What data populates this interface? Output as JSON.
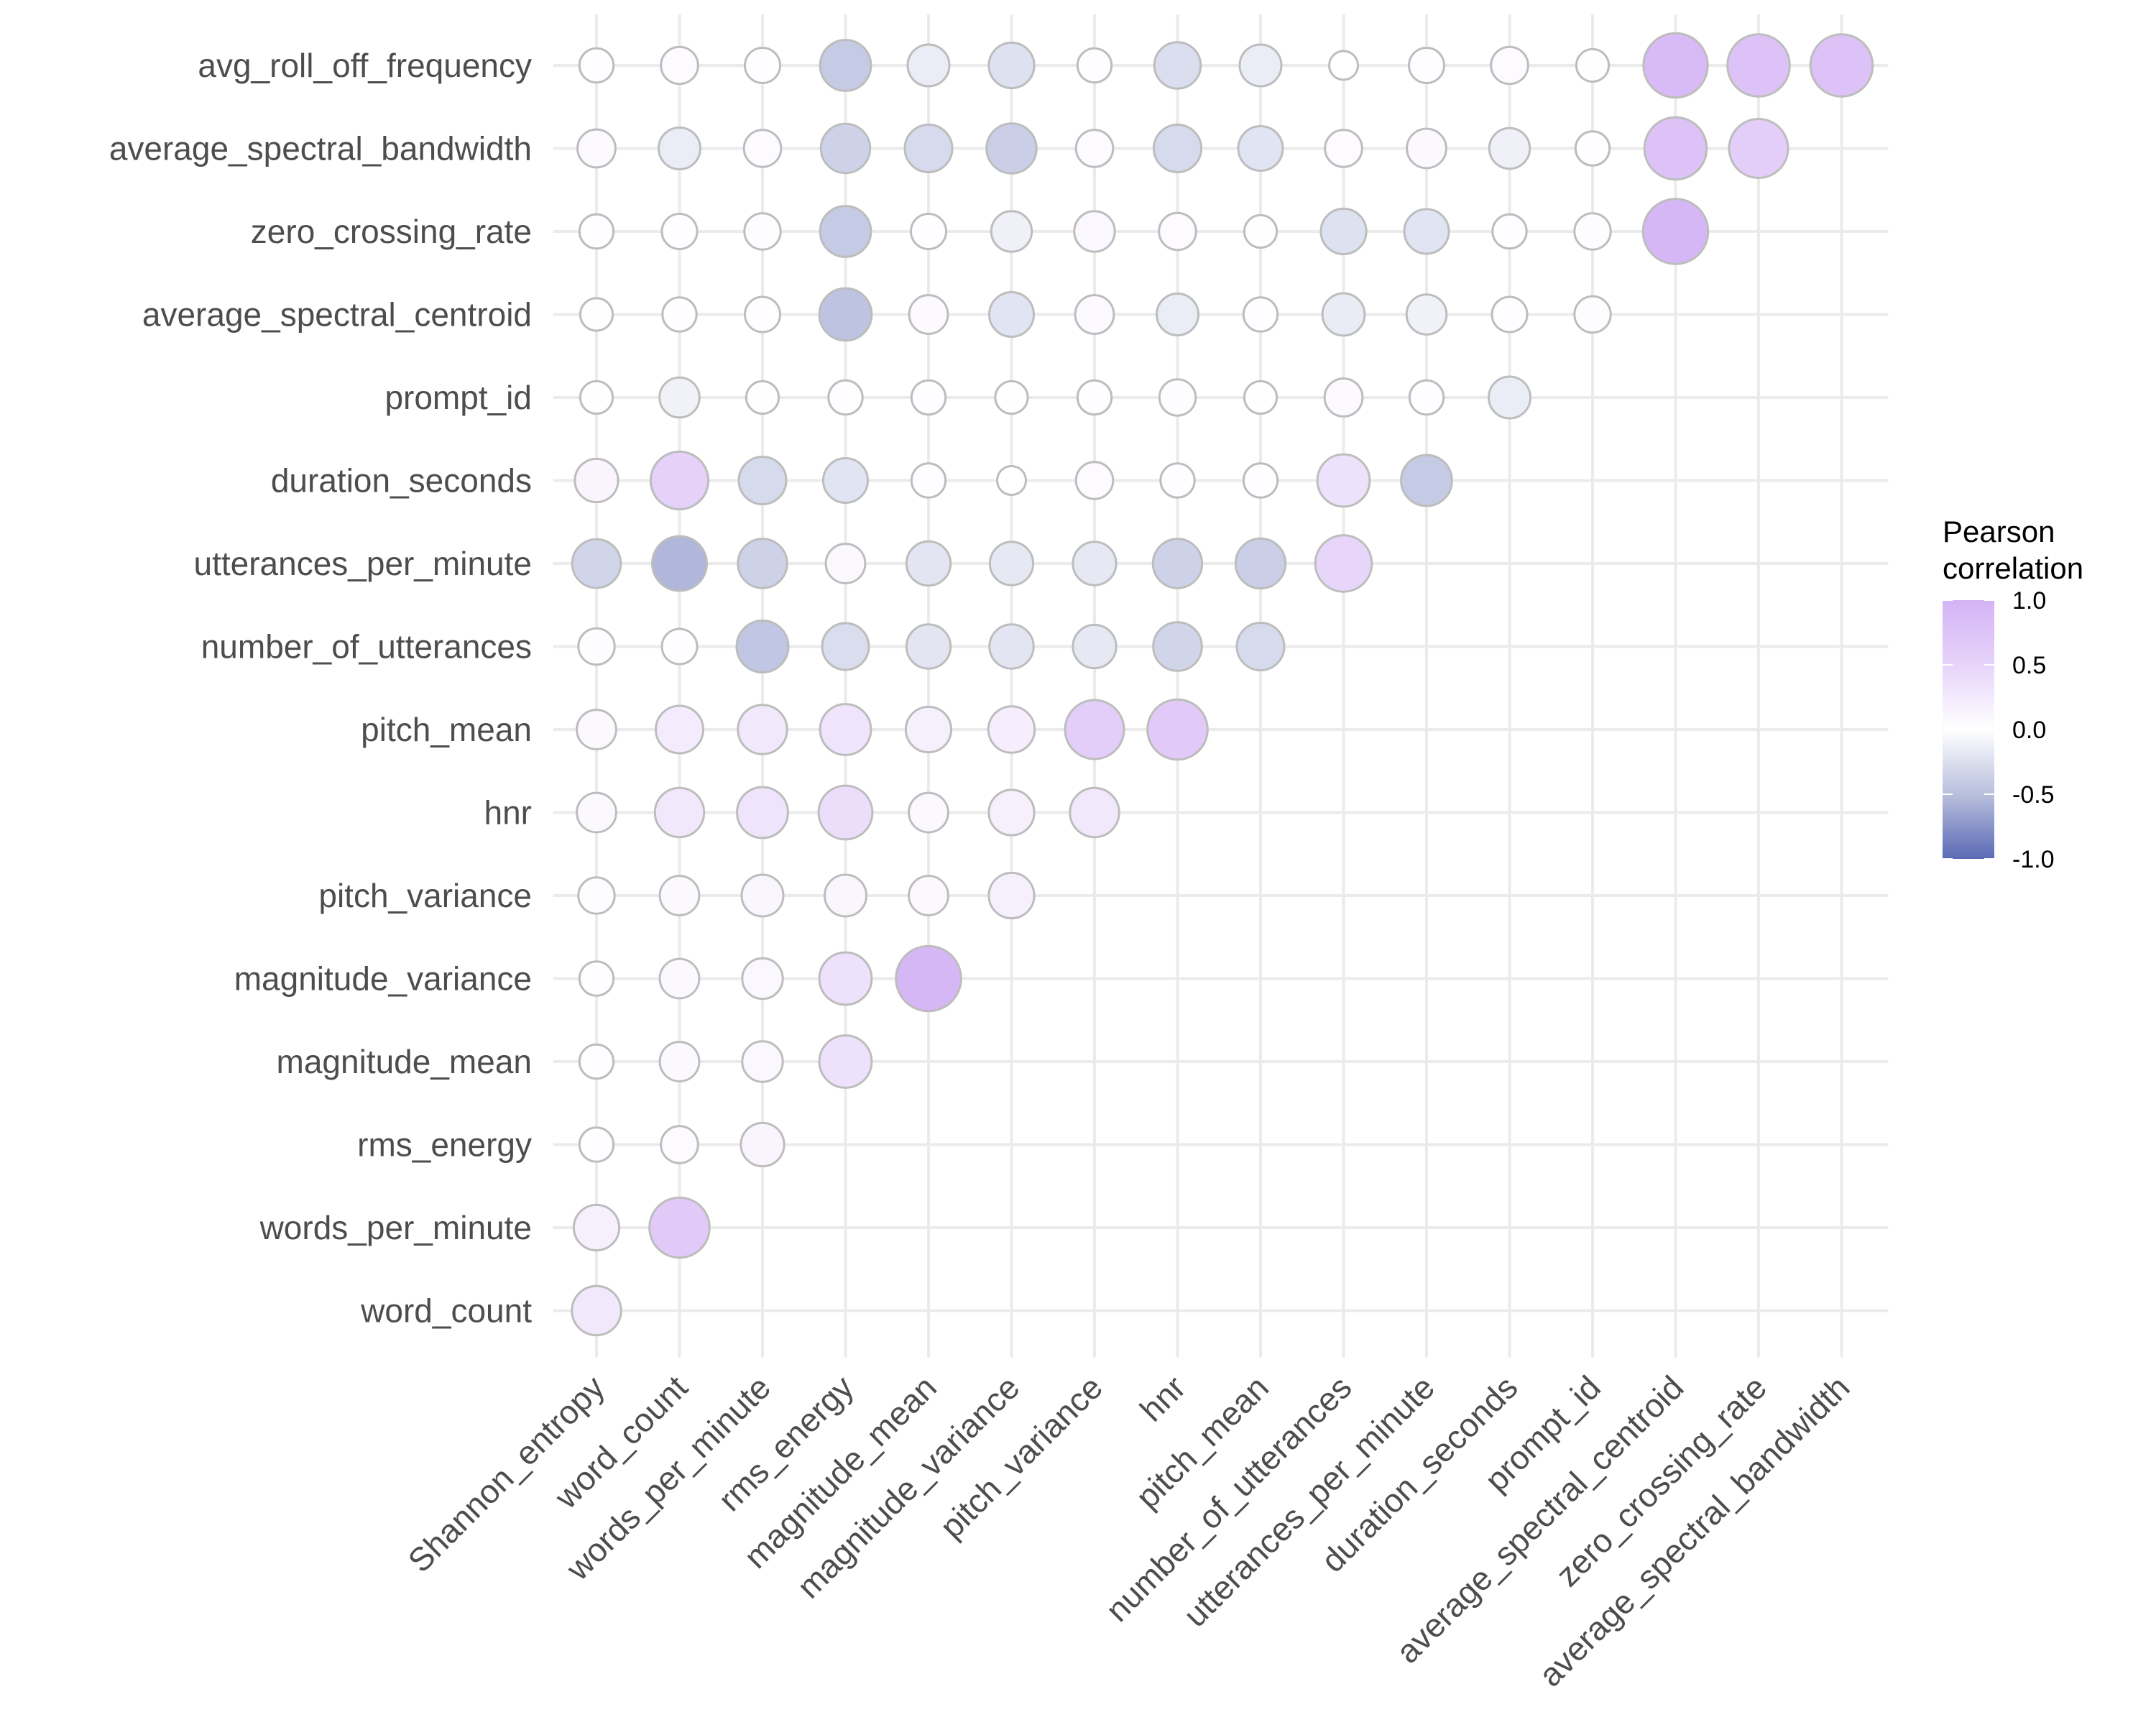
{
  "chart_data": {
    "type": "scatter",
    "subtype": "correlation-bubble-matrix",
    "title": "",
    "xlabel": "",
    "ylabel": "",
    "x_categories": [
      "Shannon_entropy",
      "word_count",
      "words_per_minute",
      "rms_energy",
      "magnitude_mean",
      "magnitude_variance",
      "pitch_variance",
      "hnr",
      "pitch_mean",
      "number_of_utterances",
      "utterances_per_minute",
      "duration_seconds",
      "prompt_id",
      "average_spectral_centroid",
      "zero_crossing_rate",
      "average_spectral_bandwidth"
    ],
    "y_categories": [
      "avg_roll_off_frequency",
      "average_spectral_bandwidth",
      "zero_crossing_rate",
      "average_spectral_centroid",
      "prompt_id",
      "duration_seconds",
      "utterances_per_minute",
      "number_of_utterances",
      "pitch_mean",
      "hnr",
      "pitch_variance",
      "magnitude_variance",
      "magnitude_mean",
      "rms_energy",
      "words_per_minute",
      "word_count"
    ],
    "values": [
      [
        0.02,
        0.05,
        0.03,
        -0.35,
        -0.12,
        -0.2,
        0.02,
        -0.22,
        -0.12,
        0.0,
        0.03,
        0.05,
        0.01,
        0.9,
        0.8,
        0.8
      ],
      [
        0.06,
        -0.12,
        0.05,
        -0.3,
        -0.25,
        -0.32,
        0.05,
        -0.25,
        -0.18,
        0.05,
        0.08,
        -0.1,
        0.02,
        0.8,
        0.65
      ],
      [
        0.02,
        0.03,
        0.04,
        -0.35,
        0.03,
        -0.1,
        0.1,
        0.05,
        0.01,
        -0.2,
        -0.18,
        0.02,
        0.04,
        0.95
      ],
      [
        0.01,
        0.02,
        0.03,
        -0.4,
        0.07,
        -0.18,
        0.07,
        -0.12,
        0.02,
        -0.13,
        -0.09,
        0.03,
        0.04
      ],
      [
        0.01,
        -0.09,
        0.01,
        0.02,
        0.02,
        0.01,
        0.02,
        0.04,
        0.01,
        0.06,
        0.02,
        -0.12
      ],
      [
        0.15,
        0.6,
        -0.25,
        -0.18,
        0.02,
        0.0,
        0.05,
        0.02,
        0.02,
        0.4,
        -0.35
      ],
      [
        -0.28,
        -0.48,
        -0.3,
        0.08,
        -0.17,
        -0.15,
        -0.15,
        -0.3,
        -0.32,
        0.55
      ],
      [
        0.04,
        0.03,
        -0.38,
        -0.23,
        -0.17,
        -0.17,
        -0.15,
        -0.28,
        -0.25
      ],
      [
        0.08,
        0.25,
        0.3,
        0.35,
        0.2,
        0.22,
        0.65,
        0.7
      ],
      [
        0.08,
        0.3,
        0.35,
        0.45,
        0.08,
        0.2,
        0.3
      ],
      [
        0.04,
        0.08,
        0.12,
        0.12,
        0.08,
        0.2
      ],
      [
        0.02,
        0.08,
        0.1,
        0.4,
        0.95
      ],
      [
        0.02,
        0.08,
        0.1,
        0.4
      ],
      [
        0.02,
        0.05,
        0.15
      ],
      [
        0.2,
        0.7
      ],
      [
        0.3
      ]
    ],
    "layout": "lower-triangular; row i has (16 - i) cells; circle area and fill encode |r| and r",
    "grid": true,
    "legend": {
      "title": "Pearson\ncorrelation",
      "position": "right",
      "ticks": [
        1.0,
        0.5,
        0.0,
        -0.5,
        -1.0
      ],
      "tick_labels": [
        "1.0",
        "0.5",
        "0.0",
        "-0.5",
        "-1.0"
      ],
      "colors": {
        "high": "#d4b3f5",
        "mid": "#ffffff",
        "low": "#5a6ab5"
      }
    },
    "color_range": [
      -1,
      1
    ]
  },
  "legend": {
    "title_line1": "Pearson",
    "title_line2": "correlation",
    "ticks": [
      "1.0",
      "0.5",
      "0.0",
      "-0.5",
      "-1.0"
    ]
  },
  "colors": {
    "positive": "#d4b3f5",
    "zero": "#ffffff",
    "negative": "#5a6ab5",
    "grid": "#ebebeb",
    "circle_stroke": "#bdbdbd",
    "axis_text": "#4d4d4d"
  }
}
